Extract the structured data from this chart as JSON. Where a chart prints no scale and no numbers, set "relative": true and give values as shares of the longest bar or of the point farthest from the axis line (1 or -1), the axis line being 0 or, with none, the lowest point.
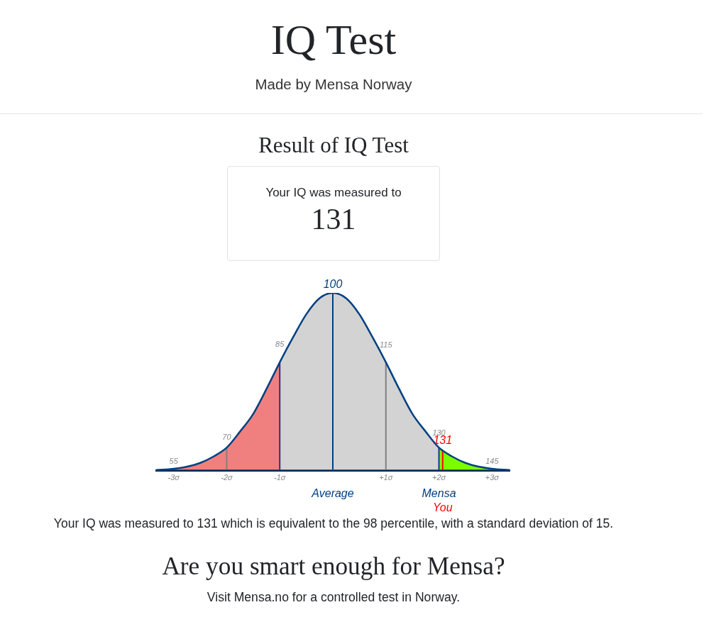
{
  "chart_data": {
    "type": "line",
    "title": "IQ Test",
    "subtitle": "Made by Mensa Norway",
    "x": [
      -3.33,
      -3,
      -2.75,
      -2.5,
      -2.25,
      -2,
      -1.75,
      -1.5,
      -1.25,
      -1,
      -0.75,
      -0.5,
      -0.25,
      0,
      0.25,
      0.5,
      0.75,
      1,
      1.25,
      1.5,
      1.75,
      2,
      2.25,
      2.5,
      2.75,
      3,
      3.33
    ],
    "values": [
      0.004,
      0.011,
      0.023,
      0.044,
      0.08,
      0.13,
      0.22,
      0.32,
      0.46,
      0.61,
      0.75,
      0.88,
      0.97,
      1,
      0.97,
      0.88,
      0.75,
      0.61,
      0.46,
      0.32,
      0.22,
      0.13,
      0.08,
      0.044,
      0.023,
      0.011,
      0.004
    ],
    "color": "#004080",
    "relative": true,
    "marker": "none",
    "line_style": "solid",
    "legend": false,
    "grid": false,
    "xlim": [
      -3.33,
      3.33
    ],
    "xticks": [
      {
        "value": -3,
        "label": "-3σ"
      },
      {
        "value": -2,
        "label": "-2σ"
      },
      {
        "value": -1,
        "label": "-1σ"
      },
      {
        "value": 1,
        "label": "+1σ"
      },
      {
        "value": 2,
        "label": "+2σ"
      },
      {
        "value": 3,
        "label": "+3σ"
      }
    ],
    "bands": [
      {
        "axis": "x",
        "from": -3.33,
        "to": -1,
        "color": "#f08080"
      },
      {
        "axis": "x",
        "from": -1,
        "to": 2,
        "color": "#d3d3d3"
      },
      {
        "axis": "x",
        "from": 2,
        "to": 3.33,
        "color": "#7cfc00",
        "label": "Mensa"
      }
    ],
    "ref_lines": [
      {
        "axis": "x",
        "value": -2,
        "color": "#808080"
      },
      {
        "axis": "x",
        "value": -1,
        "color": "#3c2a7c"
      },
      {
        "axis": "x",
        "value": 0,
        "label": "Average",
        "color": "#004080"
      },
      {
        "axis": "x",
        "value": 1,
        "color": "#808080"
      },
      {
        "axis": "x",
        "value": 2,
        "color": "#004080"
      },
      {
        "axis": "x",
        "value": 2.07,
        "label": "You",
        "color": "#ff0000"
      }
    ],
    "annotations": [
      "Result of IQ Test",
      "Your IQ was measured to",
      "131",
      "Your IQ was measured to 131 which is equivalent to the 98 percentile, with a standard deviation of 15.",
      "Are you smart enough for Mensa?",
      "Visit Mensa.no for a controlled test in Norway.",
      {
        "text": "55",
        "x": -3,
        "y": 0.011
      },
      {
        "text": "70",
        "x": -2,
        "y": 0.13
      },
      {
        "text": "85",
        "x": -1,
        "y": 0.61
      },
      {
        "text": "100",
        "x": 0,
        "y": 1
      },
      {
        "text": "115",
        "x": 1,
        "y": 0.61
      },
      {
        "text": "130",
        "x": 2,
        "y": 0.13
      },
      {
        "text": "131",
        "x": 2.07,
        "y": 0.12
      },
      {
        "text": "145",
        "x": 3,
        "y": 0.011
      }
    ]
  }
}
